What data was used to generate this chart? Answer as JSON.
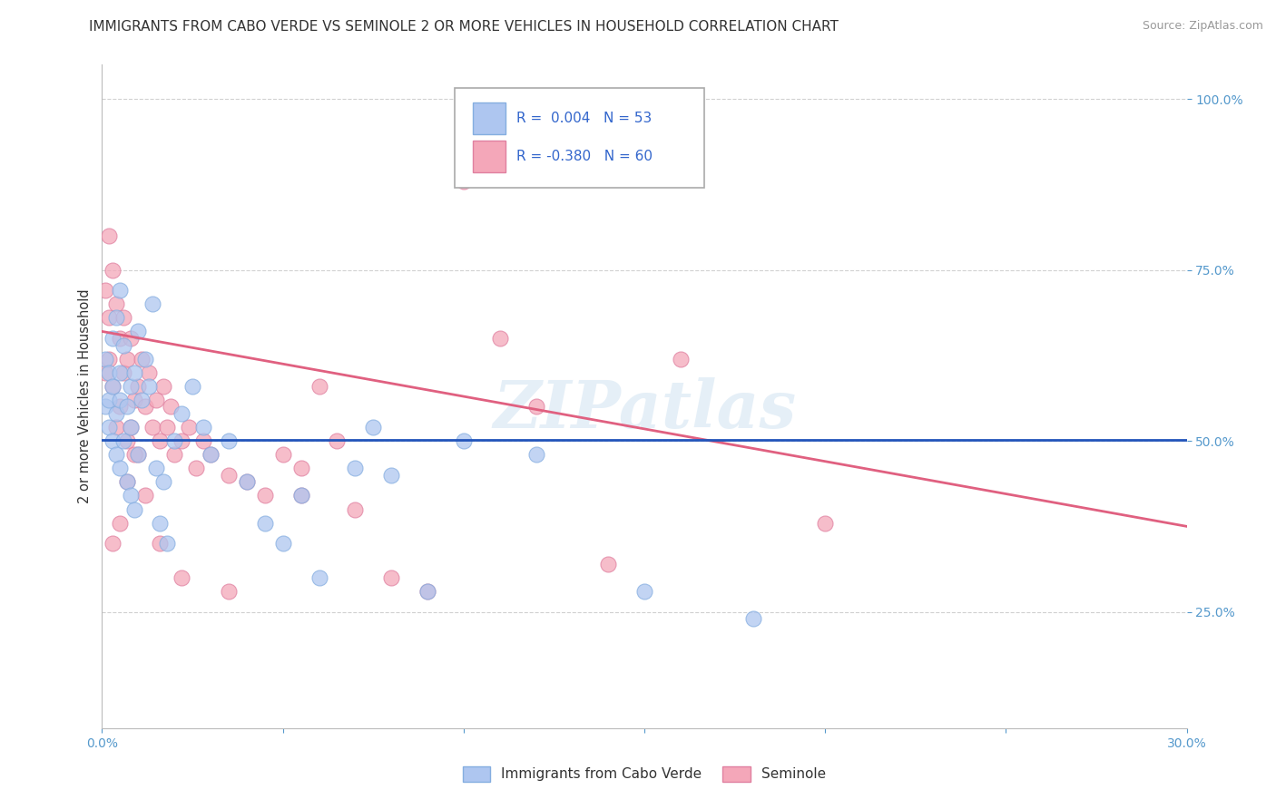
{
  "title": "IMMIGRANTS FROM CABO VERDE VS SEMINOLE 2 OR MORE VEHICLES IN HOUSEHOLD CORRELATION CHART",
  "source": "Source: ZipAtlas.com",
  "ylabel": "2 or more Vehicles in Household",
  "yaxis_labels": [
    "25.0%",
    "50.0%",
    "75.0%",
    "100.0%"
  ],
  "yaxis_values": [
    0.25,
    0.5,
    0.75,
    1.0
  ],
  "legend_entries": [
    {
      "label": "Immigrants from Cabo Verde",
      "color": "#aec6f0",
      "R": " 0.004",
      "N": "53"
    },
    {
      "label": "Seminole",
      "color": "#f4a7b9",
      "R": "-0.380",
      "N": "60"
    }
  ],
  "blue_scatter_x": [
    0.001,
    0.001,
    0.002,
    0.002,
    0.002,
    0.003,
    0.003,
    0.003,
    0.004,
    0.004,
    0.004,
    0.005,
    0.005,
    0.005,
    0.005,
    0.006,
    0.006,
    0.007,
    0.007,
    0.008,
    0.008,
    0.008,
    0.009,
    0.009,
    0.01,
    0.01,
    0.011,
    0.012,
    0.013,
    0.014,
    0.015,
    0.016,
    0.017,
    0.018,
    0.02,
    0.022,
    0.025,
    0.028,
    0.03,
    0.035,
    0.04,
    0.045,
    0.05,
    0.055,
    0.06,
    0.07,
    0.075,
    0.08,
    0.09,
    0.1,
    0.12,
    0.15,
    0.18
  ],
  "blue_scatter_y": [
    0.62,
    0.55,
    0.6,
    0.56,
    0.52,
    0.65,
    0.58,
    0.5,
    0.68,
    0.54,
    0.48,
    0.72,
    0.6,
    0.56,
    0.46,
    0.64,
    0.5,
    0.55,
    0.44,
    0.58,
    0.52,
    0.42,
    0.6,
    0.4,
    0.66,
    0.48,
    0.56,
    0.62,
    0.58,
    0.7,
    0.46,
    0.38,
    0.44,
    0.35,
    0.5,
    0.54,
    0.58,
    0.52,
    0.48,
    0.5,
    0.44,
    0.38,
    0.35,
    0.42,
    0.3,
    0.46,
    0.52,
    0.45,
    0.28,
    0.5,
    0.48,
    0.28,
    0.24
  ],
  "pink_scatter_x": [
    0.001,
    0.001,
    0.002,
    0.002,
    0.002,
    0.003,
    0.003,
    0.004,
    0.004,
    0.005,
    0.005,
    0.006,
    0.006,
    0.007,
    0.007,
    0.008,
    0.008,
    0.009,
    0.01,
    0.01,
    0.011,
    0.012,
    0.013,
    0.014,
    0.015,
    0.016,
    0.017,
    0.018,
    0.019,
    0.02,
    0.022,
    0.024,
    0.026,
    0.028,
    0.03,
    0.035,
    0.04,
    0.045,
    0.05,
    0.055,
    0.06,
    0.065,
    0.07,
    0.08,
    0.09,
    0.1,
    0.11,
    0.12,
    0.14,
    0.16,
    0.003,
    0.005,
    0.007,
    0.009,
    0.012,
    0.016,
    0.022,
    0.035,
    0.055,
    0.2
  ],
  "pink_scatter_y": [
    0.72,
    0.6,
    0.68,
    0.8,
    0.62,
    0.75,
    0.58,
    0.7,
    0.52,
    0.65,
    0.55,
    0.68,
    0.6,
    0.62,
    0.5,
    0.65,
    0.52,
    0.56,
    0.58,
    0.48,
    0.62,
    0.55,
    0.6,
    0.52,
    0.56,
    0.5,
    0.58,
    0.52,
    0.55,
    0.48,
    0.5,
    0.52,
    0.46,
    0.5,
    0.48,
    0.45,
    0.44,
    0.42,
    0.48,
    0.46,
    0.58,
    0.5,
    0.4,
    0.3,
    0.28,
    0.88,
    0.65,
    0.55,
    0.32,
    0.62,
    0.35,
    0.38,
    0.44,
    0.48,
    0.42,
    0.35,
    0.3,
    0.28,
    0.42,
    0.38
  ],
  "blue_line_x": [
    0.0,
    0.3
  ],
  "blue_line_y": [
    0.502,
    0.502
  ],
  "pink_line_x": [
    0.0,
    0.3
  ],
  "pink_line_y": [
    0.66,
    0.375
  ],
  "xmin": 0.0,
  "xmax": 0.3,
  "ymin": 0.08,
  "ymax": 1.05,
  "watermark_text": "ZIPatlas",
  "bg_color": "#ffffff",
  "grid_color": "#cccccc",
  "blue_dot_color": "#aec6f0",
  "blue_dot_edge": "#85aee0",
  "pink_dot_color": "#f4a7b9",
  "pink_dot_edge": "#e080a0",
  "blue_line_color": "#2255bb",
  "pink_line_color": "#e06080",
  "title_fontsize": 11,
  "axis_label_fontsize": 10.5,
  "tick_fontsize": 10,
  "legend_fontsize": 11,
  "source_fontsize": 9
}
